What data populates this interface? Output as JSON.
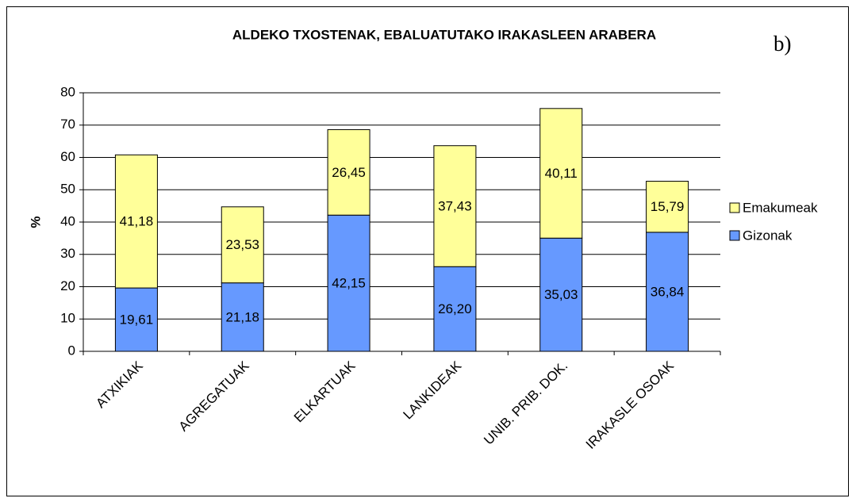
{
  "chart_data": {
    "type": "stacked_bar",
    "title": "ALDEKO TXOSTENAK, EBALUATUTAKO IRAKASLEEN ARABERA",
    "annotation": "b)",
    "ylabel": "%",
    "categories": [
      "ATXIKIAK",
      "AGREGATUAK",
      "ELKARTUAK",
      "LANKIDEAK",
      "UNIB. PRIB. DOK.",
      "IRAKASLE OSOAK"
    ],
    "series": [
      {
        "name": "Gizonak",
        "color": "#6699ff",
        "values": [
          19.61,
          21.18,
          42.15,
          26.2,
          35.03,
          36.84
        ],
        "value_labels": [
          "19,61",
          "21,18",
          "42,15",
          "26,20",
          "35,03",
          "36,84"
        ]
      },
      {
        "name": "Emakumeak",
        "color": "#ffff99",
        "values": [
          41.18,
          23.53,
          26.45,
          37.43,
          40.11,
          15.79
        ],
        "value_labels": [
          "41,18",
          "23,53",
          "26,45",
          "37,43",
          "40,11",
          "15,79"
        ]
      }
    ],
    "ylim": [
      0,
      80
    ],
    "yticks": [
      0,
      10,
      20,
      30,
      40,
      50,
      60,
      70,
      80
    ],
    "grid": true,
    "legend": "right"
  }
}
